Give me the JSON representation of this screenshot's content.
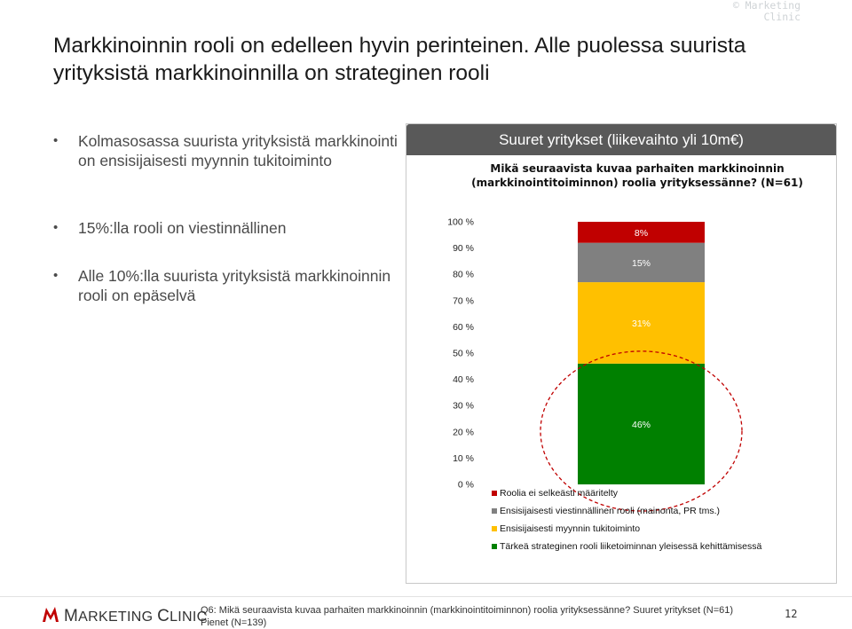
{
  "copyright": "© Marketing Clinic",
  "title": "Markkinoinnin rooli on edelleen hyvin perinteinen. Alle puolessa  suurista yrityksistä markkinoinnilla on strateginen rooli",
  "bullets": [
    "Kolmasosassa suurista yrityksistä markkinointi on ensisijaisesti myynnin tukitoiminto",
    "15%:lla rooli on viestinnällinen",
    "Alle 10%:lla suurista yrityksistä markkinoinnin rooli on epäselvä"
  ],
  "panel": {
    "header": "Suuret yritykset (liikevaihto yli 10m€)",
    "question": "Mikä seuraavista kuvaa parhaiten markkinoinnin (markkinointitoiminnon) roolia yrityksessänne? (N=61)"
  },
  "chart_data": {
    "type": "bar",
    "stacked": true,
    "categories": [
      ""
    ],
    "ylim": [
      0,
      100
    ],
    "yticks": [
      "0 %",
      "10 %",
      "20 %",
      "30 %",
      "40 %",
      "50 %",
      "60 %",
      "70 %",
      "80 %",
      "90 %",
      "100 %"
    ],
    "series": [
      {
        "name": "Tärkeä strateginen rooli liiketoiminnan yleisessä kehittämisessä",
        "values": [
          46
        ],
        "label": "46%",
        "color": "#008000"
      },
      {
        "name": "Ensisijaisesti myynnin tukitoiminto",
        "values": [
          31
        ],
        "label": "31%",
        "color": "#ffc000"
      },
      {
        "name": "Ensisijaisesti viestinnällinen rooli (mainonta, PR tms.)",
        "values": [
          15
        ],
        "label": "15%",
        "color": "#808080"
      },
      {
        "name": "Roolia ei selkeästi määritelty",
        "values": [
          8
        ],
        "label": "8%",
        "color": "#c00000"
      }
    ],
    "legend_position": "bottom",
    "grid": false,
    "highlight": "dashed red ellipse around the green segment"
  },
  "footer": {
    "logo_text_first": "M",
    "logo_text_rest": "ARKETING ",
    "logo_text_second": "C",
    "logo_text_second_rest": "LINIC",
    "footnote": "Q6: Mikä seuraavista kuvaa parhaiten markkinoinnin (markkinointitoiminnon) roolia yrityksessänne? Suuret yritykset (N=61) Pienet (N=139)",
    "page_number": "12"
  }
}
